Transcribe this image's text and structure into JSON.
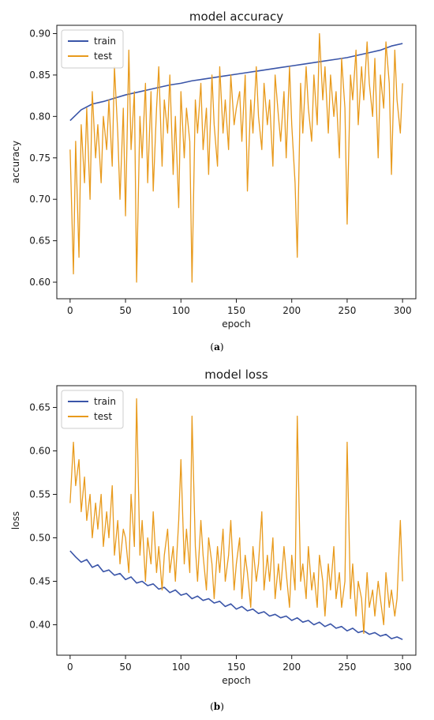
{
  "colors": {
    "train": "#3a55a8",
    "test": "#e89a1c",
    "axis": "#1a1a1a"
  },
  "captions": [
    "(a)",
    "(b)"
  ],
  "chart_data": [
    {
      "type": "line",
      "title": "model accuracy",
      "xlabel": "epoch",
      "ylabel": "accuracy",
      "xlim": [
        -12,
        312
      ],
      "ylim": [
        0.58,
        0.91
      ],
      "xticks": [
        0,
        50,
        100,
        150,
        200,
        250,
        300
      ],
      "yticks": [
        0.6,
        0.65,
        0.7,
        0.75,
        0.8,
        0.85,
        0.9
      ],
      "ytick_decimals": 2,
      "legend": "upper-left",
      "grid": false,
      "series": [
        {
          "name": "train",
          "x": [
            0,
            10,
            20,
            30,
            40,
            50,
            60,
            70,
            80,
            90,
            100,
            110,
            120,
            130,
            140,
            150,
            160,
            170,
            180,
            190,
            200,
            210,
            220,
            230,
            240,
            250,
            260,
            270,
            280,
            290,
            300
          ],
          "y": [
            0.795,
            0.808,
            0.815,
            0.818,
            0.822,
            0.826,
            0.829,
            0.832,
            0.835,
            0.838,
            0.84,
            0.843,
            0.845,
            0.847,
            0.849,
            0.851,
            0.853,
            0.855,
            0.857,
            0.859,
            0.861,
            0.863,
            0.865,
            0.867,
            0.869,
            0.871,
            0.874,
            0.877,
            0.88,
            0.885,
            0.888
          ]
        },
        {
          "name": "test",
          "x": [
            0,
            3,
            5,
            8,
            10,
            13,
            15,
            18,
            20,
            23,
            25,
            28,
            30,
            33,
            35,
            38,
            40,
            43,
            45,
            48,
            50,
            53,
            55,
            58,
            60,
            63,
            65,
            68,
            70,
            73,
            75,
            78,
            80,
            83,
            85,
            88,
            90,
            93,
            95,
            98,
            100,
            103,
            105,
            108,
            110,
            113,
            115,
            118,
            120,
            123,
            125,
            128,
            130,
            133,
            135,
            138,
            140,
            143,
            145,
            148,
            150,
            153,
            155,
            158,
            160,
            163,
            165,
            168,
            170,
            173,
            175,
            178,
            180,
            183,
            185,
            188,
            190,
            193,
            195,
            198,
            200,
            203,
            205,
            208,
            210,
            213,
            215,
            218,
            220,
            223,
            225,
            228,
            230,
            233,
            235,
            238,
            240,
            243,
            245,
            248,
            250,
            253,
            255,
            258,
            260,
            263,
            265,
            268,
            270,
            273,
            275,
            278,
            280,
            283,
            285,
            288,
            290,
            293,
            295,
            298,
            300
          ],
          "y": [
            0.76,
            0.61,
            0.77,
            0.63,
            0.79,
            0.72,
            0.81,
            0.7,
            0.83,
            0.75,
            0.79,
            0.72,
            0.8,
            0.76,
            0.82,
            0.74,
            0.86,
            0.78,
            0.7,
            0.81,
            0.68,
            0.88,
            0.76,
            0.83,
            0.6,
            0.8,
            0.75,
            0.84,
            0.72,
            0.83,
            0.71,
            0.81,
            0.86,
            0.74,
            0.82,
            0.78,
            0.85,
            0.73,
            0.8,
            0.69,
            0.83,
            0.75,
            0.81,
            0.77,
            0.6,
            0.82,
            0.78,
            0.84,
            0.76,
            0.81,
            0.73,
            0.85,
            0.79,
            0.74,
            0.86,
            0.78,
            0.82,
            0.76,
            0.85,
            0.79,
            0.81,
            0.83,
            0.77,
            0.85,
            0.71,
            0.82,
            0.78,
            0.86,
            0.8,
            0.76,
            0.84,
            0.79,
            0.82,
            0.74,
            0.85,
            0.8,
            0.77,
            0.83,
            0.75,
            0.86,
            0.79,
            0.72,
            0.63,
            0.84,
            0.78,
            0.86,
            0.81,
            0.77,
            0.85,
            0.79,
            0.9,
            0.82,
            0.86,
            0.78,
            0.85,
            0.8,
            0.83,
            0.75,
            0.87,
            0.81,
            0.67,
            0.85,
            0.82,
            0.88,
            0.79,
            0.86,
            0.82,
            0.89,
            0.84,
            0.8,
            0.87,
            0.75,
            0.85,
            0.81,
            0.89,
            0.84,
            0.73,
            0.88,
            0.82,
            0.78,
            0.84
          ]
        }
      ]
    },
    {
      "type": "line",
      "title": "model loss",
      "xlabel": "epoch",
      "ylabel": "loss",
      "xlim": [
        -12,
        312
      ],
      "ylim": [
        0.365,
        0.675
      ],
      "xticks": [
        0,
        50,
        100,
        150,
        200,
        250,
        300
      ],
      "yticks": [
        0.4,
        0.45,
        0.5,
        0.55,
        0.6,
        0.65
      ],
      "ytick_decimals": 2,
      "legend": "upper-left",
      "grid": false,
      "series": [
        {
          "name": "train",
          "x": [
            0,
            5,
            10,
            15,
            20,
            25,
            30,
            35,
            40,
            45,
            50,
            55,
            60,
            65,
            70,
            75,
            80,
            85,
            90,
            95,
            100,
            105,
            110,
            115,
            120,
            125,
            130,
            135,
            140,
            145,
            150,
            155,
            160,
            165,
            170,
            175,
            180,
            185,
            190,
            195,
            200,
            205,
            210,
            215,
            220,
            225,
            230,
            235,
            240,
            245,
            250,
            255,
            260,
            265,
            270,
            275,
            280,
            285,
            290,
            295,
            300
          ],
          "y": [
            0.485,
            0.478,
            0.472,
            0.475,
            0.466,
            0.469,
            0.461,
            0.463,
            0.457,
            0.459,
            0.452,
            0.455,
            0.448,
            0.45,
            0.445,
            0.447,
            0.441,
            0.443,
            0.437,
            0.44,
            0.434,
            0.436,
            0.43,
            0.433,
            0.428,
            0.43,
            0.425,
            0.427,
            0.421,
            0.424,
            0.418,
            0.421,
            0.416,
            0.418,
            0.413,
            0.415,
            0.41,
            0.412,
            0.408,
            0.41,
            0.405,
            0.408,
            0.403,
            0.405,
            0.4,
            0.403,
            0.398,
            0.401,
            0.396,
            0.398,
            0.393,
            0.396,
            0.391,
            0.393,
            0.389,
            0.391,
            0.387,
            0.389,
            0.384,
            0.386,
            0.383
          ]
        },
        {
          "name": "test",
          "x": [
            0,
            3,
            5,
            8,
            10,
            13,
            15,
            18,
            20,
            23,
            25,
            28,
            30,
            33,
            35,
            38,
            40,
            43,
            45,
            48,
            50,
            53,
            55,
            58,
            60,
            63,
            65,
            68,
            70,
            73,
            75,
            78,
            80,
            83,
            85,
            88,
            90,
            93,
            95,
            98,
            100,
            103,
            105,
            108,
            110,
            113,
            115,
            118,
            120,
            123,
            125,
            128,
            130,
            133,
            135,
            138,
            140,
            143,
            145,
            148,
            150,
            153,
            155,
            158,
            160,
            163,
            165,
            168,
            170,
            173,
            175,
            178,
            180,
            183,
            185,
            188,
            190,
            193,
            195,
            198,
            200,
            203,
            205,
            208,
            210,
            213,
            215,
            218,
            220,
            223,
            225,
            228,
            230,
            233,
            235,
            238,
            240,
            243,
            245,
            248,
            250,
            253,
            255,
            258,
            260,
            263,
            265,
            268,
            270,
            273,
            275,
            278,
            280,
            283,
            285,
            288,
            290,
            293,
            295,
            298,
            300
          ],
          "y": [
            0.54,
            0.61,
            0.56,
            0.59,
            0.53,
            0.57,
            0.52,
            0.55,
            0.5,
            0.54,
            0.51,
            0.55,
            0.49,
            0.53,
            0.5,
            0.56,
            0.48,
            0.52,
            0.47,
            0.51,
            0.5,
            0.46,
            0.55,
            0.49,
            0.66,
            0.48,
            0.52,
            0.45,
            0.5,
            0.47,
            0.53,
            0.46,
            0.49,
            0.44,
            0.48,
            0.51,
            0.46,
            0.49,
            0.45,
            0.52,
            0.59,
            0.47,
            0.51,
            0.46,
            0.64,
            0.49,
            0.45,
            0.52,
            0.48,
            0.44,
            0.5,
            0.47,
            0.43,
            0.49,
            0.46,
            0.51,
            0.45,
            0.48,
            0.52,
            0.44,
            0.47,
            0.5,
            0.43,
            0.48,
            0.46,
            0.42,
            0.49,
            0.45,
            0.47,
            0.53,
            0.44,
            0.48,
            0.45,
            0.5,
            0.43,
            0.47,
            0.44,
            0.49,
            0.46,
            0.42,
            0.48,
            0.44,
            0.64,
            0.45,
            0.47,
            0.43,
            0.49,
            0.44,
            0.46,
            0.42,
            0.48,
            0.45,
            0.41,
            0.47,
            0.44,
            0.49,
            0.43,
            0.46,
            0.42,
            0.45,
            0.61,
            0.43,
            0.47,
            0.41,
            0.45,
            0.43,
            0.39,
            0.46,
            0.42,
            0.44,
            0.41,
            0.45,
            0.43,
            0.4,
            0.46,
            0.42,
            0.44,
            0.41,
            0.43,
            0.52,
            0.45
          ]
        }
      ]
    }
  ]
}
